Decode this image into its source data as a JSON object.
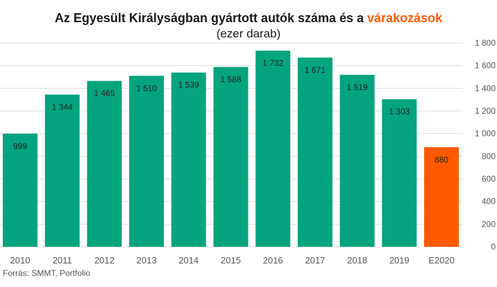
{
  "title": {
    "main": "Az Egyesült Királyságban gyártott autók száma és a ",
    "highlight": "várakozások"
  },
  "subtitle": "(ezer darab)",
  "source": "Forrás: SMMT, Portfolio",
  "colors": {
    "actual": "#04a47f",
    "forecast": "#ff5a00",
    "grid": "#dddddd",
    "text": "#222222",
    "axis_text": "#555555"
  },
  "chart_data": {
    "type": "bar",
    "title": "Az Egyesült Királyságban gyártott autók száma és a várakozások",
    "subtitle": "(ezer darab)",
    "categories": [
      "2010",
      "2011",
      "2012",
      "2013",
      "2014",
      "2015",
      "2016",
      "2017",
      "2018",
      "2019",
      "E2020"
    ],
    "values": [
      999,
      1344,
      1465,
      1510,
      1539,
      1588,
      1732,
      1671,
      1519,
      1303,
      880
    ],
    "value_labels": [
      "999",
      "1 344",
      "1 465",
      "1 510",
      "1 539",
      "1 588",
      "1 732",
      "1 671",
      "1 519",
      "1 303",
      "880"
    ],
    "forecast_flags": [
      false,
      false,
      false,
      false,
      false,
      false,
      false,
      false,
      false,
      false,
      true
    ],
    "ylim": [
      0,
      1800
    ],
    "yticks": [
      0,
      200,
      400,
      600,
      800,
      1000,
      1200,
      1400,
      1600,
      1800
    ],
    "ytick_labels": [
      "0",
      "200",
      "400",
      "600",
      "800",
      "1 000",
      "1 200",
      "1 400",
      "1 600",
      "1 800"
    ],
    "y_axis_side": "right",
    "grid": true,
    "xlabel": "",
    "ylabel": ""
  }
}
